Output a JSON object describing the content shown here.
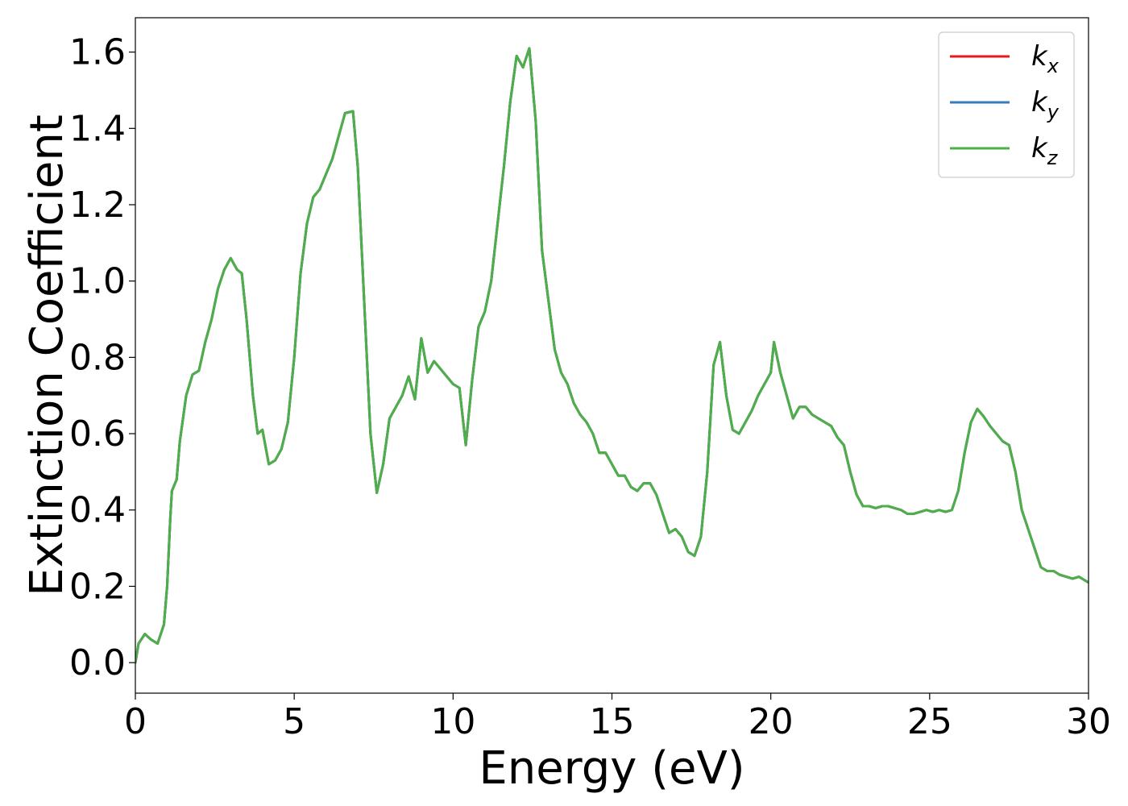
{
  "chart_data": {
    "type": "line",
    "xlabel": "Energy (eV)",
    "ylabel": "Extinction Coefficient",
    "xlim": [
      0,
      30
    ],
    "ylim": [
      -0.08,
      1.69
    ],
    "xticks": [
      0,
      5,
      10,
      15,
      20,
      25,
      30
    ],
    "xtick_labels": [
      "0",
      "5",
      "10",
      "15",
      "20",
      "25",
      "30"
    ],
    "yticks": [
      0.0,
      0.2,
      0.4,
      0.6,
      0.8,
      1.0,
      1.2,
      1.4,
      1.6
    ],
    "ytick_labels": [
      "0.0",
      "0.2",
      "0.4",
      "0.6",
      "0.8",
      "1.0",
      "1.2",
      "1.4",
      "1.6"
    ],
    "grid": false,
    "legend_position": "top-right",
    "x": [
      0,
      0.1,
      0.3,
      0.5,
      0.7,
      0.9,
      1.0,
      1.1,
      1.15,
      1.3,
      1.4,
      1.6,
      1.8,
      2.0,
      2.2,
      2.4,
      2.6,
      2.8,
      3.0,
      3.2,
      3.35,
      3.5,
      3.7,
      3.85,
      4.0,
      4.2,
      4.4,
      4.6,
      4.8,
      5.0,
      5.2,
      5.4,
      5.6,
      5.8,
      6.0,
      6.2,
      6.4,
      6.6,
      6.85,
      7.0,
      7.2,
      7.4,
      7.6,
      7.8,
      8.0,
      8.2,
      8.4,
      8.6,
      8.8,
      9.0,
      9.2,
      9.4,
      9.6,
      9.8,
      10.0,
      10.2,
      10.4,
      10.6,
      10.8,
      11.0,
      11.2,
      11.4,
      11.6,
      11.8,
      12.0,
      12.2,
      12.4,
      12.6,
      12.8,
      13.0,
      13.2,
      13.4,
      13.6,
      13.8,
      14.0,
      14.2,
      14.4,
      14.6,
      14.8,
      15.0,
      15.2,
      15.4,
      15.6,
      15.8,
      16.0,
      16.2,
      16.4,
      16.6,
      16.8,
      17.0,
      17.2,
      17.4,
      17.6,
      17.8,
      18.0,
      18.2,
      18.4,
      18.6,
      18.8,
      19.0,
      19.2,
      19.4,
      19.6,
      19.8,
      20.0,
      20.1,
      20.3,
      20.5,
      20.7,
      20.9,
      21.1,
      21.3,
      21.5,
      21.7,
      21.9,
      22.1,
      22.3,
      22.5,
      22.7,
      22.9,
      23.1,
      23.3,
      23.5,
      23.7,
      23.9,
      24.1,
      24.3,
      24.5,
      24.7,
      24.9,
      25.1,
      25.3,
      25.5,
      25.7,
      25.9,
      26.1,
      26.3,
      26.5,
      26.7,
      26.9,
      27.1,
      27.3,
      27.5,
      27.7,
      27.9,
      28.1,
      28.3,
      28.5,
      28.7,
      28.9,
      29.1,
      29.3,
      29.5,
      29.7,
      30.0
    ],
    "series": [
      {
        "name": "k_x",
        "color": "#e41a1c",
        "values": [
          0.0,
          0.05,
          0.075,
          0.06,
          0.05,
          0.1,
          0.2,
          0.38,
          0.45,
          0.48,
          0.58,
          0.7,
          0.755,
          0.765,
          0.84,
          0.9,
          0.98,
          1.03,
          1.06,
          1.03,
          1.02,
          0.9,
          0.7,
          0.6,
          0.61,
          0.52,
          0.53,
          0.56,
          0.63,
          0.8,
          1.02,
          1.15,
          1.22,
          1.24,
          1.28,
          1.32,
          1.38,
          1.44,
          1.445,
          1.3,
          0.95,
          0.6,
          0.445,
          0.52,
          0.64,
          0.67,
          0.7,
          0.75,
          0.69,
          0.85,
          0.76,
          0.79,
          0.77,
          0.75,
          0.73,
          0.72,
          0.57,
          0.74,
          0.88,
          0.92,
          1.0,
          1.15,
          1.3,
          1.47,
          1.59,
          1.56,
          1.61,
          1.42,
          1.08,
          0.95,
          0.82,
          0.76,
          0.73,
          0.68,
          0.65,
          0.63,
          0.6,
          0.55,
          0.55,
          0.52,
          0.49,
          0.49,
          0.46,
          0.45,
          0.47,
          0.47,
          0.44,
          0.39,
          0.34,
          0.35,
          0.33,
          0.29,
          0.28,
          0.33,
          0.5,
          0.78,
          0.84,
          0.7,
          0.61,
          0.6,
          0.63,
          0.66,
          0.7,
          0.73,
          0.76,
          0.84,
          0.76,
          0.7,
          0.64,
          0.67,
          0.67,
          0.65,
          0.64,
          0.63,
          0.62,
          0.59,
          0.57,
          0.5,
          0.44,
          0.41,
          0.41,
          0.405,
          0.41,
          0.41,
          0.405,
          0.4,
          0.39,
          0.39,
          0.395,
          0.4,
          0.395,
          0.4,
          0.395,
          0.4,
          0.45,
          0.55,
          0.63,
          0.665,
          0.645,
          0.62,
          0.6,
          0.58,
          0.57,
          0.5,
          0.4,
          0.35,
          0.3,
          0.25,
          0.24,
          0.24,
          0.23,
          0.225,
          0.22,
          0.225,
          0.21
        ]
      },
      {
        "name": "k_y",
        "color": "#377eb8",
        "values": [
          0.0,
          0.05,
          0.075,
          0.06,
          0.05,
          0.1,
          0.2,
          0.38,
          0.45,
          0.48,
          0.58,
          0.7,
          0.755,
          0.765,
          0.84,
          0.9,
          0.98,
          1.03,
          1.06,
          1.03,
          1.02,
          0.9,
          0.7,
          0.6,
          0.61,
          0.52,
          0.53,
          0.56,
          0.63,
          0.8,
          1.02,
          1.15,
          1.22,
          1.24,
          1.28,
          1.32,
          1.38,
          1.44,
          1.445,
          1.3,
          0.95,
          0.6,
          0.445,
          0.52,
          0.64,
          0.67,
          0.7,
          0.75,
          0.69,
          0.85,
          0.76,
          0.79,
          0.77,
          0.75,
          0.73,
          0.72,
          0.57,
          0.74,
          0.88,
          0.92,
          1.0,
          1.15,
          1.3,
          1.47,
          1.59,
          1.56,
          1.61,
          1.42,
          1.08,
          0.95,
          0.82,
          0.76,
          0.73,
          0.68,
          0.65,
          0.63,
          0.6,
          0.55,
          0.55,
          0.52,
          0.49,
          0.49,
          0.46,
          0.45,
          0.47,
          0.47,
          0.44,
          0.39,
          0.34,
          0.35,
          0.33,
          0.29,
          0.28,
          0.33,
          0.5,
          0.78,
          0.84,
          0.7,
          0.61,
          0.6,
          0.63,
          0.66,
          0.7,
          0.73,
          0.76,
          0.84,
          0.76,
          0.7,
          0.64,
          0.67,
          0.67,
          0.65,
          0.64,
          0.63,
          0.62,
          0.59,
          0.57,
          0.5,
          0.44,
          0.41,
          0.41,
          0.405,
          0.41,
          0.41,
          0.405,
          0.4,
          0.39,
          0.39,
          0.395,
          0.4,
          0.395,
          0.4,
          0.395,
          0.4,
          0.45,
          0.55,
          0.63,
          0.665,
          0.645,
          0.62,
          0.6,
          0.58,
          0.57,
          0.5,
          0.4,
          0.35,
          0.3,
          0.25,
          0.24,
          0.24,
          0.23,
          0.225,
          0.22,
          0.225,
          0.21
        ]
      },
      {
        "name": "k_z",
        "color": "#4daf4a",
        "values": [
          0.0,
          0.05,
          0.075,
          0.06,
          0.05,
          0.1,
          0.2,
          0.38,
          0.45,
          0.48,
          0.58,
          0.7,
          0.755,
          0.765,
          0.84,
          0.9,
          0.98,
          1.03,
          1.06,
          1.03,
          1.02,
          0.9,
          0.7,
          0.6,
          0.61,
          0.52,
          0.53,
          0.56,
          0.63,
          0.8,
          1.02,
          1.15,
          1.22,
          1.24,
          1.28,
          1.32,
          1.38,
          1.44,
          1.445,
          1.3,
          0.95,
          0.6,
          0.445,
          0.52,
          0.64,
          0.67,
          0.7,
          0.75,
          0.69,
          0.85,
          0.76,
          0.79,
          0.77,
          0.75,
          0.73,
          0.72,
          0.57,
          0.74,
          0.88,
          0.92,
          1.0,
          1.15,
          1.3,
          1.47,
          1.59,
          1.56,
          1.61,
          1.42,
          1.08,
          0.95,
          0.82,
          0.76,
          0.73,
          0.68,
          0.65,
          0.63,
          0.6,
          0.55,
          0.55,
          0.52,
          0.49,
          0.49,
          0.46,
          0.45,
          0.47,
          0.47,
          0.44,
          0.39,
          0.34,
          0.35,
          0.33,
          0.29,
          0.28,
          0.33,
          0.5,
          0.78,
          0.84,
          0.7,
          0.61,
          0.6,
          0.63,
          0.66,
          0.7,
          0.73,
          0.76,
          0.84,
          0.76,
          0.7,
          0.64,
          0.67,
          0.67,
          0.65,
          0.64,
          0.63,
          0.62,
          0.59,
          0.57,
          0.5,
          0.44,
          0.41,
          0.41,
          0.405,
          0.41,
          0.41,
          0.405,
          0.4,
          0.39,
          0.39,
          0.395,
          0.4,
          0.395,
          0.4,
          0.395,
          0.4,
          0.45,
          0.55,
          0.63,
          0.665,
          0.645,
          0.62,
          0.6,
          0.58,
          0.57,
          0.5,
          0.4,
          0.35,
          0.3,
          0.25,
          0.24,
          0.24,
          0.23,
          0.225,
          0.22,
          0.225,
          0.21
        ]
      }
    ],
    "legend": [
      {
        "base": "k",
        "sub": "x",
        "color": "#e41a1c"
      },
      {
        "base": "k",
        "sub": "y",
        "color": "#377eb8"
      },
      {
        "base": "k",
        "sub": "z",
        "color": "#4daf4a"
      }
    ]
  }
}
